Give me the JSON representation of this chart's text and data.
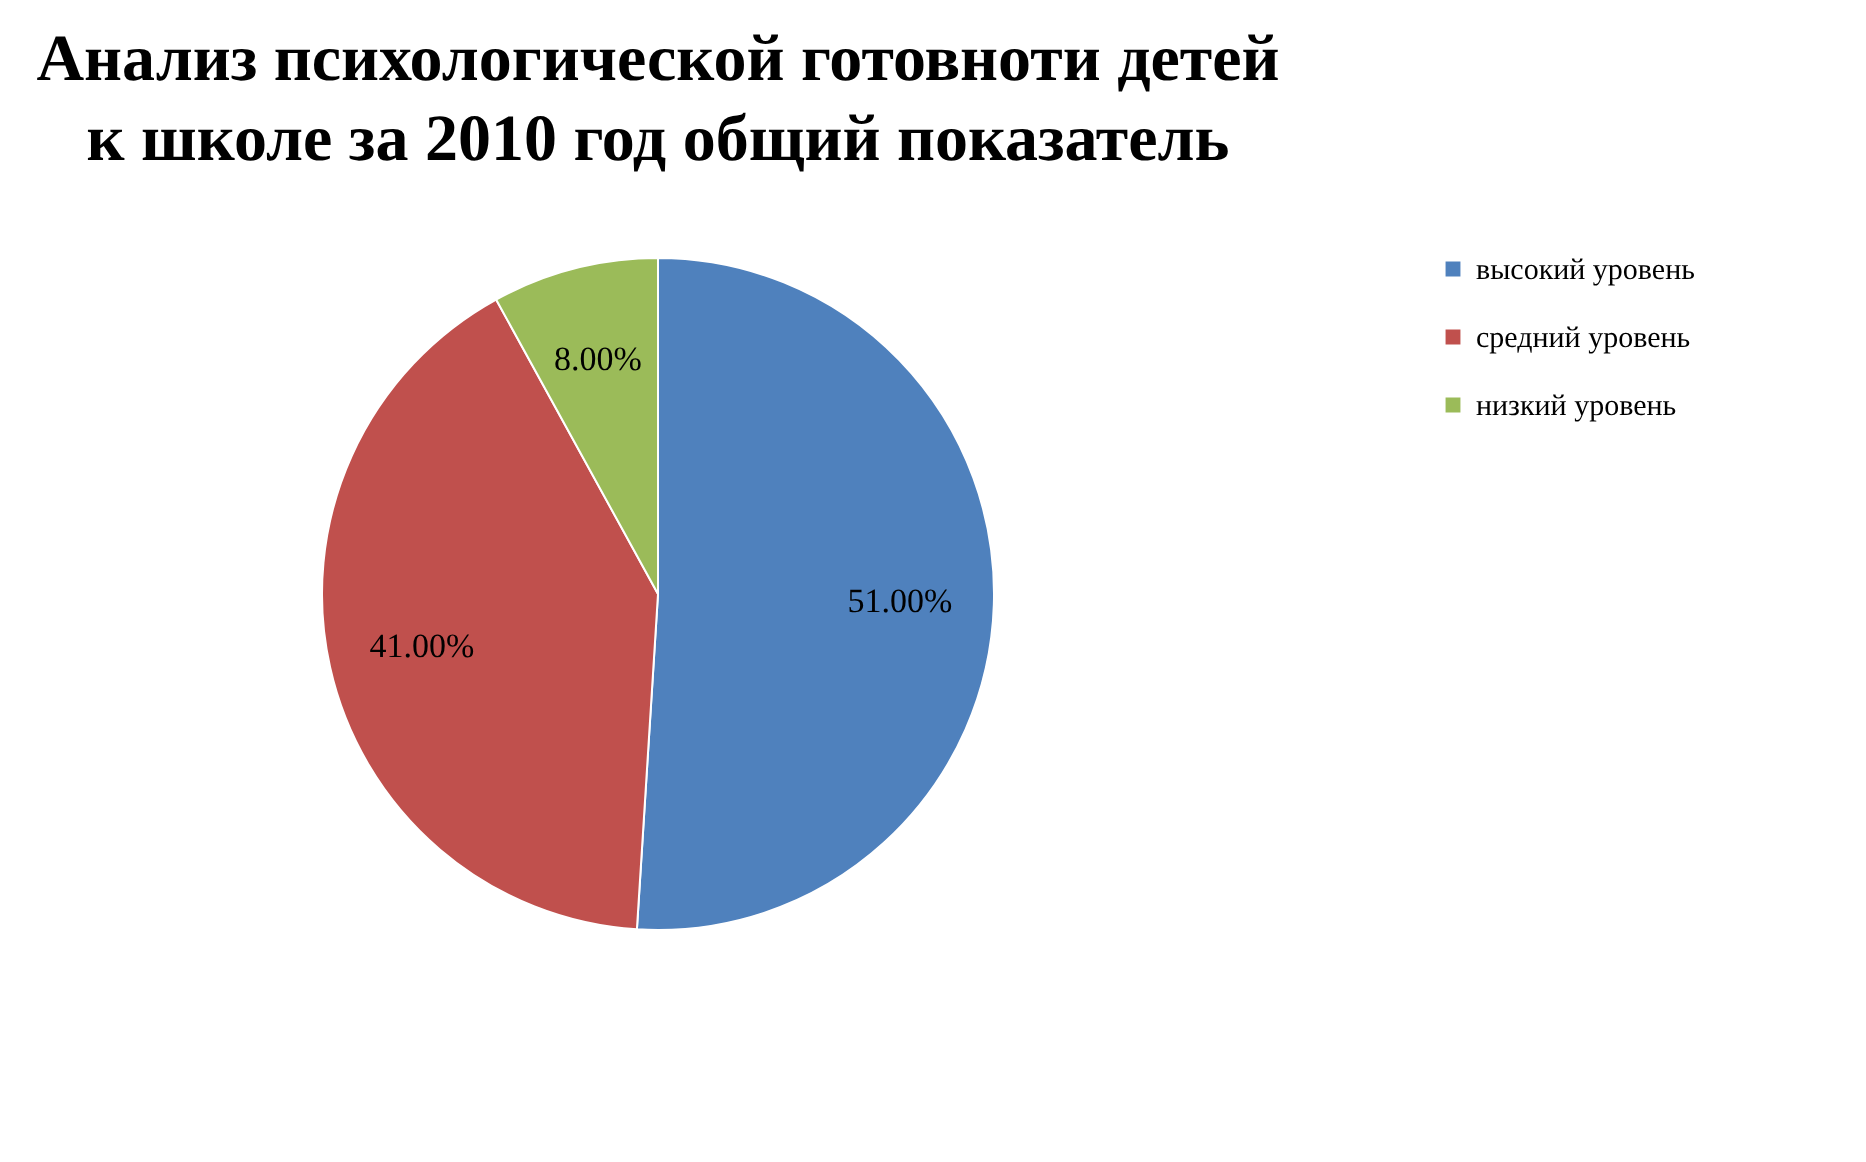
{
  "chart_data": {
    "type": "pie",
    "title": "Анализ психологической готовноти детей\nк школе за 2010 год         общий показатель",
    "categories": [
      "высокий уровень",
      "средний уровень",
      "низкий уровень"
    ],
    "values": [
      51,
      41,
      8
    ],
    "colors": [
      "#4f81bd",
      "#c0504d",
      "#9bbb59"
    ],
    "value_labels": [
      "51.00%",
      "41.00%",
      "8.00%"
    ],
    "legend": "right"
  }
}
